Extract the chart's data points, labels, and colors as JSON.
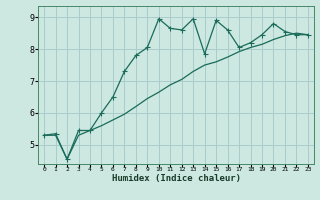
{
  "xlabel": "Humidex (Indice chaleur)",
  "bg_color": "#cce8e0",
  "grid_color": "#aacccc",
  "line_color": "#1a6b5a",
  "xlim": [
    -0.5,
    23.5
  ],
  "ylim": [
    4.4,
    9.35
  ],
  "yticks": [
    5,
    6,
    7,
    8,
    9
  ],
  "xticks": [
    0,
    1,
    2,
    3,
    4,
    5,
    6,
    7,
    8,
    9,
    10,
    11,
    12,
    13,
    14,
    15,
    16,
    17,
    18,
    19,
    20,
    21,
    22,
    23
  ],
  "line1_x": [
    0,
    1,
    2,
    3,
    4,
    5,
    6,
    7,
    8,
    9,
    10,
    11,
    12,
    13,
    14,
    15,
    16,
    17,
    18,
    19,
    20,
    21,
    22,
    23
  ],
  "line1_y": [
    5.3,
    5.35,
    4.55,
    5.45,
    5.45,
    6.0,
    6.5,
    7.3,
    7.8,
    8.05,
    8.95,
    8.65,
    8.6,
    8.95,
    7.85,
    8.9,
    8.6,
    8.05,
    8.2,
    8.45,
    8.8,
    8.55,
    8.45,
    8.45
  ],
  "line2_x": [
    0,
    1,
    2,
    3,
    4,
    5,
    6,
    7,
    8,
    9,
    10,
    11,
    12,
    13,
    14,
    15,
    16,
    17,
    18,
    19,
    20,
    21,
    22,
    23
  ],
  "line2_y": [
    5.3,
    5.3,
    4.55,
    5.3,
    5.45,
    5.6,
    5.78,
    5.96,
    6.2,
    6.45,
    6.65,
    6.88,
    7.05,
    7.3,
    7.5,
    7.6,
    7.75,
    7.92,
    8.05,
    8.15,
    8.3,
    8.42,
    8.5,
    8.45
  ]
}
